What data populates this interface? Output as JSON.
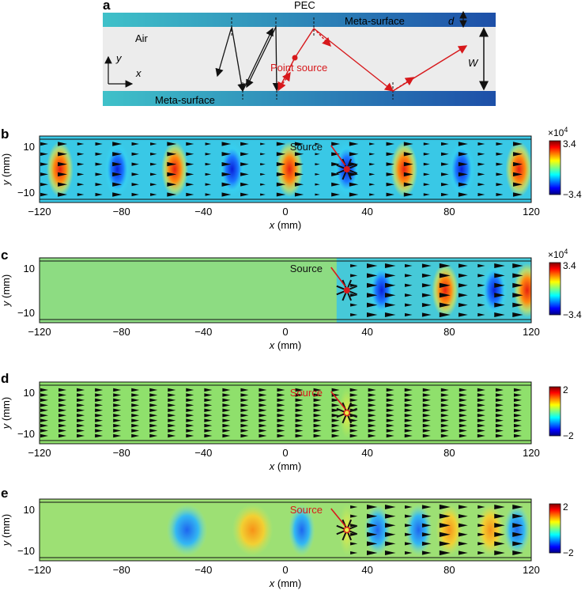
{
  "panel_a": {
    "letter": "a",
    "pec_label": "PEC",
    "meta_surface_top": "Meta-surface",
    "meta_surface_bottom": "Meta-surface",
    "air_label": "Air",
    "d_label": "d",
    "w_label": "W",
    "y_axis": "y",
    "x_axis": "x",
    "point_source_label": "Point source"
  },
  "colors": {
    "red": "#d7191c",
    "metasurface_light": "#3fc1c9",
    "metasurface_dark": "#1d4fa8",
    "air": "#ececec"
  },
  "field_panels": [
    {
      "letter": "b",
      "source_label": "Source",
      "colorbar": {
        "exponent": "×10",
        "exponent_power": "4",
        "max": "3.4",
        "min": "−3.4"
      },
      "yticks": [
        "10",
        "−10"
      ],
      "xticks": [
        "−120",
        "−80",
        "−40",
        "0",
        "40",
        "80",
        "120"
      ],
      "ylabel_var": "y",
      "ylabel_unit": " (mm)",
      "xlabel_var": "x",
      "xlabel_unit": " (mm)"
    },
    {
      "letter": "c",
      "source_label": "Source",
      "colorbar": {
        "exponent": "×10",
        "exponent_power": "4",
        "max": "3.4",
        "min": "−3.4"
      },
      "yticks": [
        "10",
        "−10"
      ],
      "xticks": [
        "−120",
        "−80",
        "−40",
        "0",
        "40",
        "80",
        "120"
      ],
      "ylabel_var": "y",
      "ylabel_unit": " (mm)",
      "xlabel_var": "x",
      "xlabel_unit": " (mm)"
    },
    {
      "letter": "d",
      "source_label": "Source",
      "colorbar": {
        "exponent": "",
        "exponent_power": "",
        "max": "2",
        "min": "−2"
      },
      "yticks": [
        "10",
        "−10"
      ],
      "xticks": [
        "−120",
        "−80",
        "−40",
        "0",
        "40",
        "80",
        "120"
      ],
      "ylabel_var": "y",
      "ylabel_unit": " (mm)",
      "xlabel_var": "x",
      "xlabel_unit": " (mm)"
    },
    {
      "letter": "e",
      "source_label": "Source",
      "colorbar": {
        "exponent": "",
        "exponent_power": "",
        "max": "2",
        "min": "−2"
      },
      "yticks": [
        "10",
        "−10"
      ],
      "xticks": [
        "−120",
        "−80",
        "−40",
        "0",
        "40",
        "80",
        "120"
      ],
      "ylabel_var": "y",
      "ylabel_unit": " (mm)",
      "xlabel_var": "x",
      "xlabel_unit": " (mm)"
    }
  ]
}
